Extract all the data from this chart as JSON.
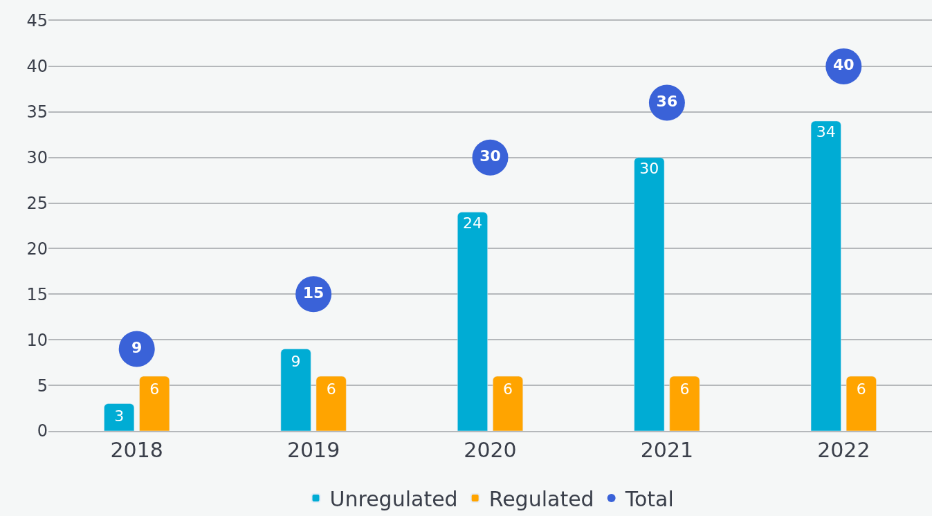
{
  "chart_data": {
    "type": "bar",
    "categories": [
      "2018",
      "2019",
      "2020",
      "2021",
      "2022"
    ],
    "series": [
      {
        "name": "Unregulated",
        "color": "#00acd4",
        "values": [
          3,
          9,
          24,
          30,
          34
        ]
      },
      {
        "name": "Regulated",
        "color": "#ffa400",
        "values": [
          6,
          6,
          6,
          6,
          6
        ]
      },
      {
        "name": "Total",
        "type": "scatter",
        "color": "#3a62d8",
        "values": [
          9,
          15,
          30,
          36,
          40
        ]
      }
    ],
    "ylim": [
      0,
      45
    ],
    "yticks": [
      0,
      5,
      10,
      15,
      20,
      25,
      30,
      35,
      40,
      45
    ],
    "grid": "y",
    "legend": "bottom",
    "marker": "circle",
    "data_labels": true
  }
}
